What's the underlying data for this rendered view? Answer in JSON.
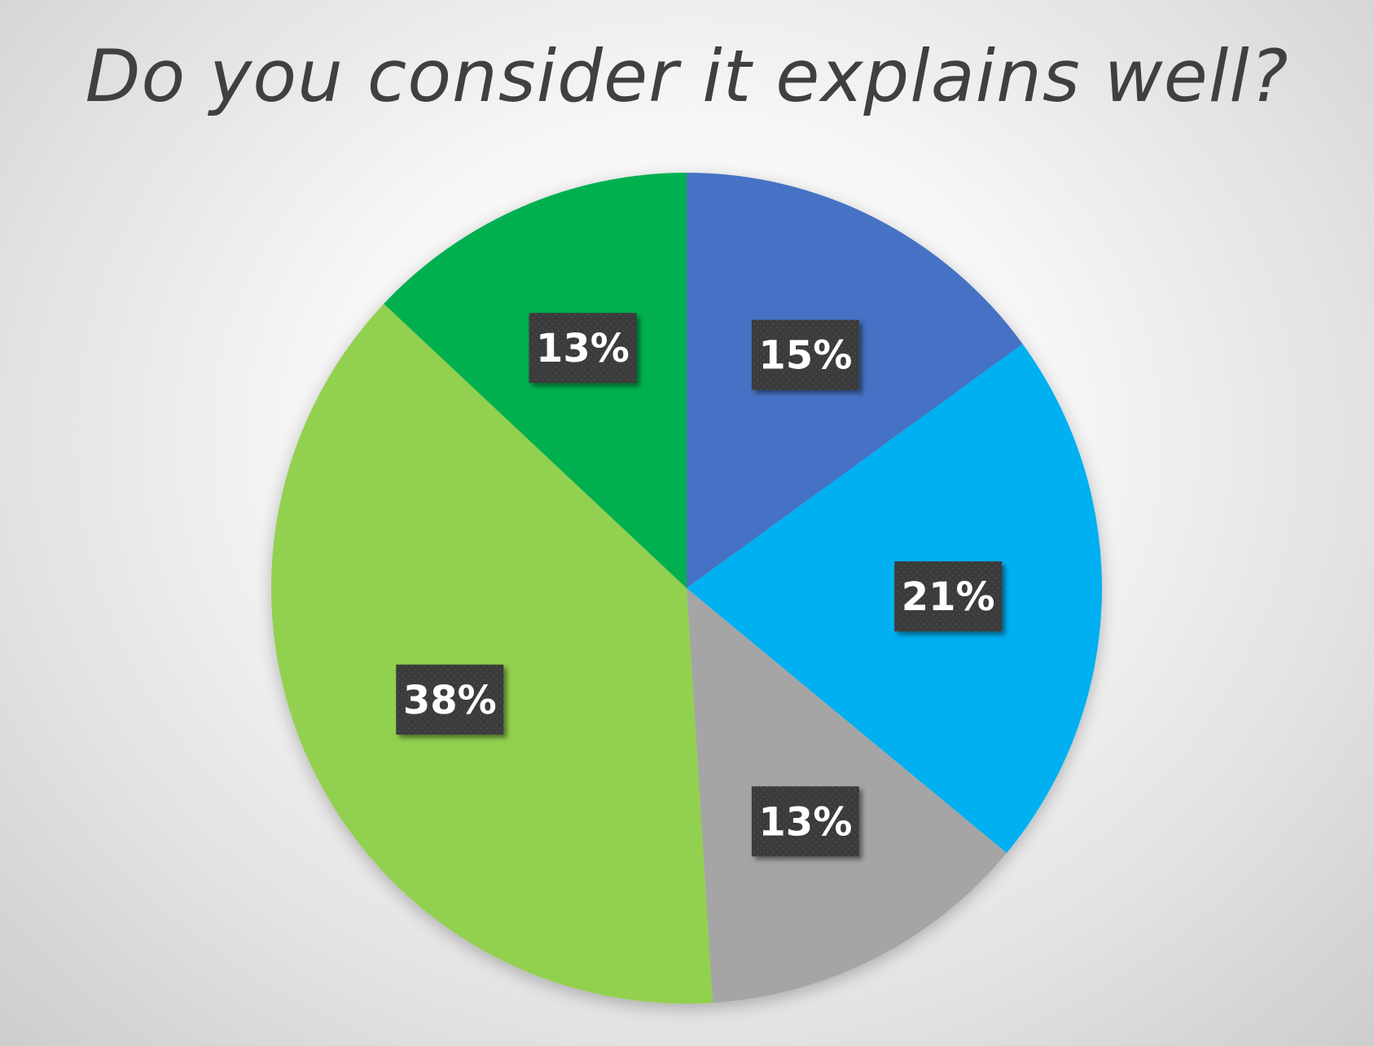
{
  "chart_data": {
    "type": "pie",
    "title": "Do you consider it explains well?",
    "slices": [
      {
        "value": 15,
        "label": "15%",
        "color": "#4472C4"
      },
      {
        "value": 21,
        "label": "21%",
        "color": "#00B0F0"
      },
      {
        "value": 13,
        "label": "13%",
        "color": "#A5A5A5"
      },
      {
        "value": 38,
        "label": "38%",
        "color": "#92D050"
      },
      {
        "value": 13,
        "label": "13%",
        "color": "#00B050"
      }
    ],
    "start_angle": "12 o'clock",
    "direction": "clockwise",
    "legend": "none",
    "data_label_style": "dark box, white bold text"
  }
}
